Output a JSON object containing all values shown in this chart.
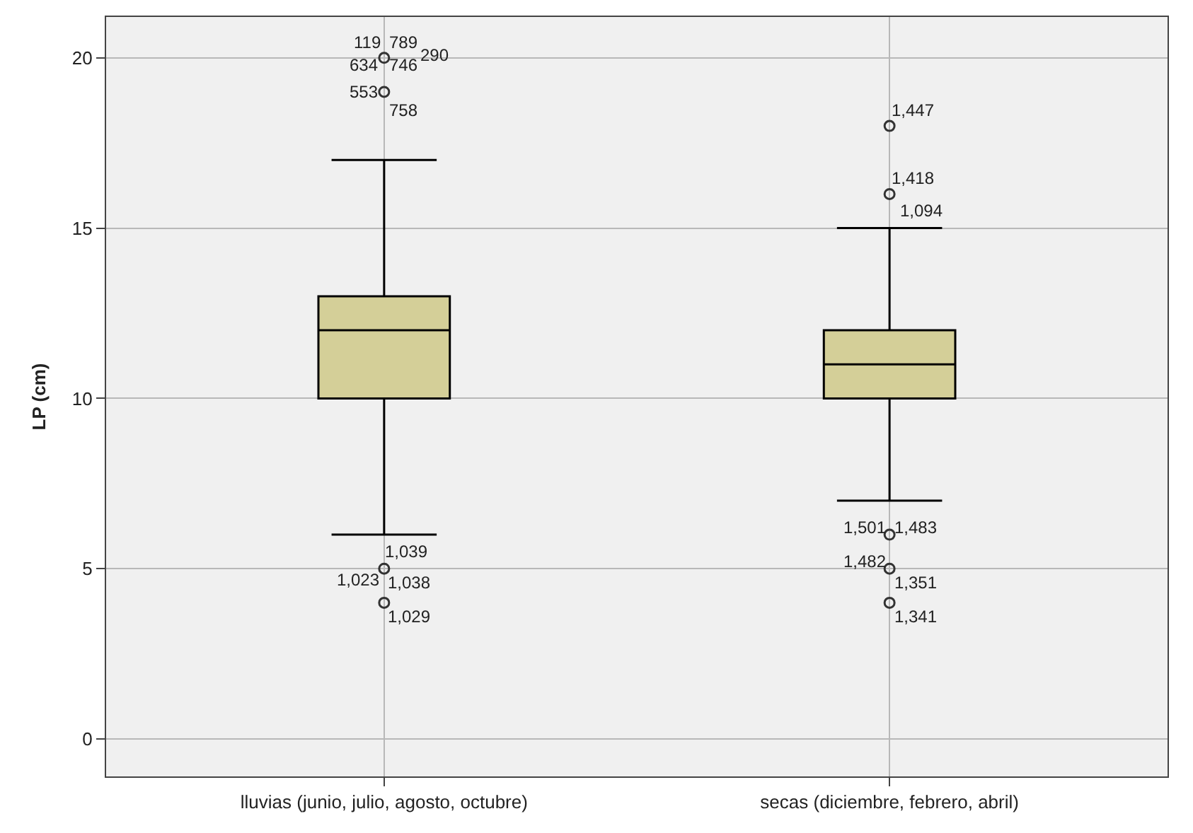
{
  "chart_data": {
    "type": "box",
    "ylabel": "LP (cm)",
    "categories": [
      "lluvias (junio, julio, agosto, octubre)",
      "secas (diciembre, febrero, abril)"
    ],
    "color": "#d4cf98",
    "ylim": [
      -1.1,
      21.2
    ],
    "yticks": [
      0,
      5,
      10,
      15,
      20
    ],
    "grid": true,
    "marker": "circle",
    "boxes": [
      {
        "low": 6,
        "q1": 10,
        "median": 12,
        "q3": 13,
        "high": 17,
        "outliers": [
          20,
          19,
          5,
          4
        ]
      },
      {
        "low": 7,
        "q1": 10,
        "median": 11,
        "q3": 12,
        "high": 15,
        "outliers": [
          18,
          16,
          6,
          5,
          4
        ]
      }
    ],
    "annotations": [
      "119",
      "789",
      "634",
      "746",
      "290",
      "553",
      "758",
      "1,039",
      "1,023",
      "1,038",
      "1,029",
      "1,447",
      "1,418",
      "1,094",
      "1,501",
      "1,483",
      "1,482",
      "1,351",
      "1,341"
    ]
  }
}
